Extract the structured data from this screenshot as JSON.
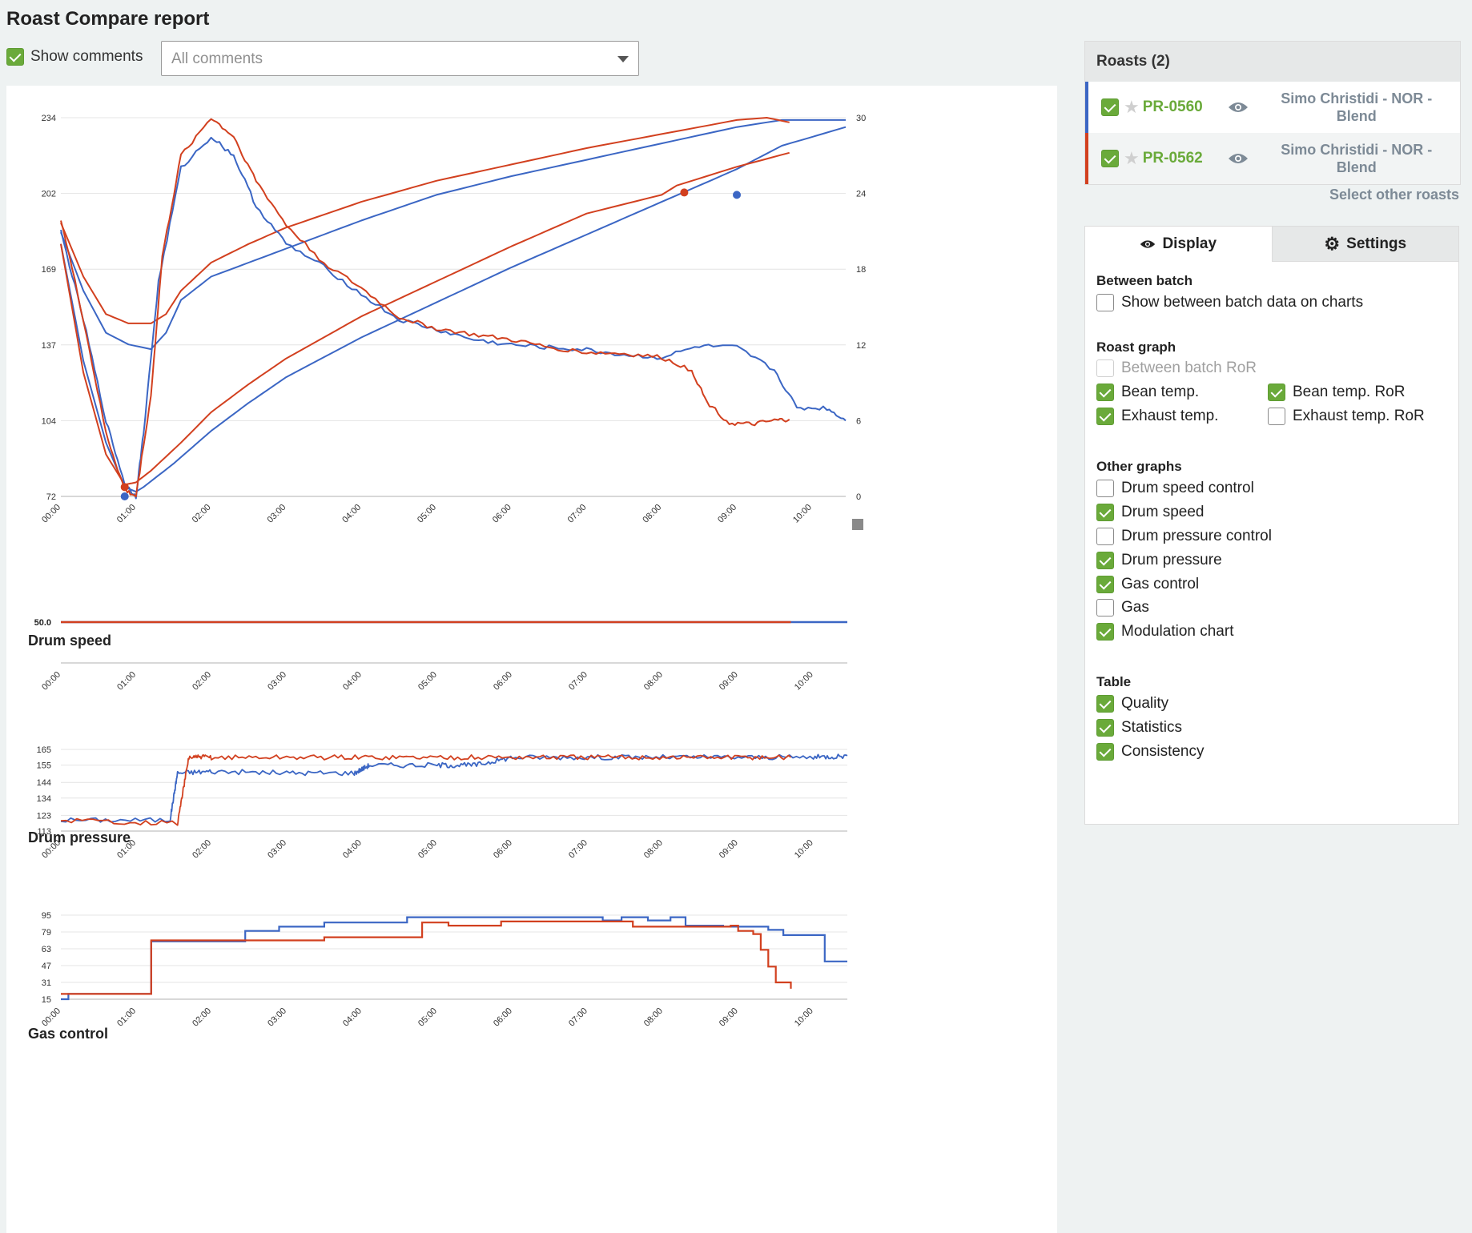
{
  "page": {
    "title": "Roast Compare report"
  },
  "comments": {
    "show_label": "Show comments",
    "select_placeholder": "All comments"
  },
  "colors": {
    "series_a": "#3b66c4",
    "series_b": "#d2401f",
    "accent": "#6aaa3a"
  },
  "roasts": {
    "header": "Roasts (2)",
    "items": [
      {
        "id": "PR-0560",
        "name": "Simo Christidi - NOR - Blend",
        "color": "#3b66c4",
        "checked": true
      },
      {
        "id": "PR-0562",
        "name": "Simo Christidi - NOR - Blend",
        "color": "#d2401f",
        "checked": true
      }
    ],
    "select_other": "Select other roasts"
  },
  "tabs": {
    "display": "Display",
    "settings": "Settings"
  },
  "display": {
    "between_batch": {
      "title": "Between batch",
      "show_label": "Show between batch data on charts"
    },
    "roast_graph": {
      "title": "Roast graph",
      "between_batch_ror": "Between batch RoR",
      "bean_temp": "Bean temp.",
      "bean_temp_ror": "Bean temp. RoR",
      "exhaust_temp": "Exhaust temp.",
      "exhaust_temp_ror": "Exhaust temp. RoR"
    },
    "other_graphs": {
      "title": "Other graphs",
      "drum_speed_control": "Drum speed control",
      "drum_speed": "Drum speed",
      "drum_pressure_control": "Drum pressure control",
      "drum_pressure": "Drum pressure",
      "gas_control": "Gas control",
      "gas": "Gas",
      "modulation_chart": "Modulation chart"
    },
    "table": {
      "title": "Table",
      "quality": "Quality",
      "statistics": "Statistics",
      "consistency": "Consistency"
    }
  },
  "sections": {
    "drum_speed": "Drum speed",
    "drum_pressure": "Drum pressure",
    "gas_control": "Gas control"
  },
  "chart_data": [
    {
      "type": "line",
      "title": "",
      "x_ticks": [
        "00:00",
        "01:00",
        "02:00",
        "03:00",
        "04:00",
        "05:00",
        "06:00",
        "07:00",
        "08:00",
        "09:00",
        "10:00"
      ],
      "xlim": [
        0,
        10.45
      ],
      "y_left_ticks": [
        "72",
        "104",
        "137",
        "169",
        "202",
        "234"
      ],
      "ylim_left": [
        72,
        234
      ],
      "y_right_ticks": [
        "0",
        "6",
        "12",
        "18",
        "24",
        "30"
      ],
      "ylim_right": [
        0,
        30
      ],
      "series": [
        {
          "role": "bean-temp",
          "axis": "left",
          "color": "#3b66c4",
          "x": [
            0,
            0.3,
            0.6,
            0.85,
            1.0,
            1.1,
            1.5,
            2,
            2.5,
            3,
            4,
            5,
            6,
            7,
            8,
            9,
            9.6,
            10.45
          ],
          "y": [
            180,
            130,
            95,
            76,
            74,
            76,
            86,
            100,
            112,
            123,
            140,
            155,
            170,
            184,
            198,
            212,
            222,
            230
          ]
        },
        {
          "role": "bean-temp",
          "axis": "left",
          "color": "#d2401f",
          "x": [
            0,
            0.3,
            0.6,
            0.85,
            1.0,
            1.2,
            1.6,
            2,
            2.5,
            3,
            4,
            5,
            6,
            7,
            8,
            8.2,
            9,
            9.7
          ],
          "y": [
            180,
            125,
            90,
            77,
            78,
            83,
            95,
            108,
            120,
            131,
            149,
            164,
            179,
            193,
            201,
            205,
            213,
            219
          ]
        },
        {
          "role": "exhaust-temp",
          "axis": "left",
          "color": "#3b66c4",
          "x": [
            0,
            0.3,
            0.6,
            0.9,
            1.2,
            1.4,
            1.6,
            2,
            2.5,
            3,
            4,
            5,
            6,
            7,
            8,
            9,
            9.6,
            10.45
          ],
          "y": [
            185,
            160,
            142,
            137,
            135,
            142,
            156,
            166,
            172,
            178,
            190,
            201,
            209,
            216,
            223,
            230,
            233,
            233
          ]
        },
        {
          "role": "exhaust-temp",
          "axis": "left",
          "color": "#d2401f",
          "x": [
            0,
            0.3,
            0.6,
            0.9,
            1.2,
            1.4,
            1.6,
            2,
            2.5,
            3,
            4,
            5,
            6,
            7,
            8,
            9,
            9.4,
            9.7
          ],
          "y": [
            189,
            166,
            150,
            146,
            146,
            150,
            160,
            172,
            180,
            187,
            198,
            207,
            214,
            221,
            227,
            233,
            234,
            232
          ]
        },
        {
          "role": "bean-temp-ror",
          "axis": "right",
          "color": "#3b66c4",
          "x": [
            0,
            0.3,
            0.6,
            0.85,
            1.0,
            1.1,
            1.3,
            1.6,
            2.0,
            2.3,
            2.6,
            3.0,
            3.5,
            4.0,
            4.5,
            5.0,
            5.5,
            6.0,
            6.5,
            7.0,
            7.5,
            8.0,
            8.5,
            9.0,
            9.5,
            9.8,
            10.2,
            10.45
          ],
          "y": [
            21,
            14,
            6,
            1,
            0,
            5,
            17,
            26,
            28.5,
            27,
            23,
            20,
            18.2,
            16,
            14,
            13.2,
            12.4,
            12.0,
            11.8,
            11.6,
            11.2,
            11.0,
            11.9,
            11.8,
            10,
            7,
            7,
            6
          ]
        },
        {
          "role": "bean-temp-ror",
          "axis": "right",
          "color": "#d2401f",
          "x": [
            0,
            0.3,
            0.6,
            0.85,
            1.0,
            1.2,
            1.35,
            1.6,
            2.0,
            2.3,
            2.6,
            3.0,
            3.5,
            4.0,
            4.5,
            5.0,
            5.5,
            6.0,
            6.5,
            7.0,
            7.5,
            8.0,
            8.4,
            8.6,
            8.9,
            9.2,
            9.5,
            9.7
          ],
          "y": [
            22,
            14,
            5,
            0.5,
            0,
            8,
            19,
            27,
            30,
            28.5,
            25,
            21.5,
            18.5,
            16.5,
            14.2,
            13.3,
            12.8,
            12.4,
            11.8,
            11.4,
            11.3,
            11.0,
            10.0,
            7.5,
            5.8,
            5.7,
            6.0,
            6.1
          ]
        }
      ],
      "markers": [
        {
          "color": "#3b66c4",
          "x": 0.85,
          "y": 72
        },
        {
          "color": "#d2401f",
          "x": 0.85,
          "y": 76
        },
        {
          "color": "#d2401f",
          "x": 8.3,
          "y": 202
        },
        {
          "color": "#3b66c4",
          "x": 9.0,
          "y": 201
        }
      ]
    },
    {
      "type": "line",
      "title": "Drum speed",
      "x_ticks": [
        "00:00",
        "01:00",
        "02:00",
        "03:00",
        "04:00",
        "05:00",
        "06:00",
        "07:00",
        "08:00",
        "09:00",
        "10:00"
      ],
      "y_ticks": [
        "50.0"
      ],
      "series": [
        {
          "color": "#3b66c4",
          "x": [
            0,
            10.45
          ],
          "y": [
            50,
            50
          ]
        },
        {
          "color": "#d2401f",
          "x": [
            0,
            9.7
          ],
          "y": [
            50,
            50
          ]
        }
      ]
    },
    {
      "type": "line",
      "title": "Drum pressure",
      "x_ticks": [
        "00:00",
        "01:00",
        "02:00",
        "03:00",
        "04:00",
        "05:00",
        "06:00",
        "07:00",
        "08:00",
        "09:00",
        "10:00"
      ],
      "y_ticks": [
        "113",
        "123",
        "134",
        "144",
        "155",
        "165"
      ],
      "ylim": [
        113,
        165
      ],
      "series": [
        {
          "color": "#3b66c4",
          "x": [
            0,
            1.45,
            1.55,
            2,
            3,
            3.9,
            4.1,
            5,
            5.5,
            6,
            7,
            8,
            9,
            10,
            10.45
          ],
          "y": [
            120,
            120,
            150,
            151,
            150,
            150,
            155,
            155,
            155,
            160,
            160,
            160,
            160,
            160,
            161
          ]
        },
        {
          "color": "#d2401f",
          "x": [
            0,
            1.55,
            1.7,
            2,
            3,
            4,
            5,
            6,
            7,
            8,
            9,
            9.7
          ],
          "y": [
            120,
            118,
            160,
            160,
            160,
            160,
            160,
            160,
            160,
            160,
            160,
            160
          ]
        }
      ]
    },
    {
      "type": "line",
      "title": "Gas control",
      "x_ticks": [
        "00:00",
        "01:00",
        "02:00",
        "03:00",
        "04:00",
        "05:00",
        "06:00",
        "07:00",
        "08:00",
        "09:00",
        "10:00"
      ],
      "y_ticks": [
        "15",
        "31",
        "47",
        "63",
        "79",
        "95"
      ],
      "ylim": [
        15,
        95
      ],
      "series": [
        {
          "color": "#3b66c4",
          "step": true,
          "x": [
            0,
            0.1,
            1.2,
            2.45,
            2.9,
            3.5,
            4.6,
            7.15,
            7.2,
            7.45,
            7.8,
            8.1,
            8.3,
            8.6,
            8.8,
            9.0,
            9.4,
            9.6,
            10.15,
            10.45
          ],
          "y": [
            15,
            20,
            70,
            80,
            84,
            88,
            93,
            93,
            90,
            93,
            90,
            93,
            85,
            85,
            84,
            84,
            81,
            76,
            51,
            51
          ]
        },
        {
          "color": "#d2401f",
          "step": true,
          "x": [
            0,
            1.2,
            2.4,
            3.5,
            4.8,
            5.15,
            5.85,
            7.6,
            8.9,
            9.0,
            9.2,
            9.3,
            9.4,
            9.5,
            9.7
          ],
          "y": [
            20,
            71,
            71,
            74,
            88,
            85,
            89,
            84,
            85,
            80,
            77,
            62,
            46,
            31,
            25
          ]
        }
      ]
    }
  ]
}
